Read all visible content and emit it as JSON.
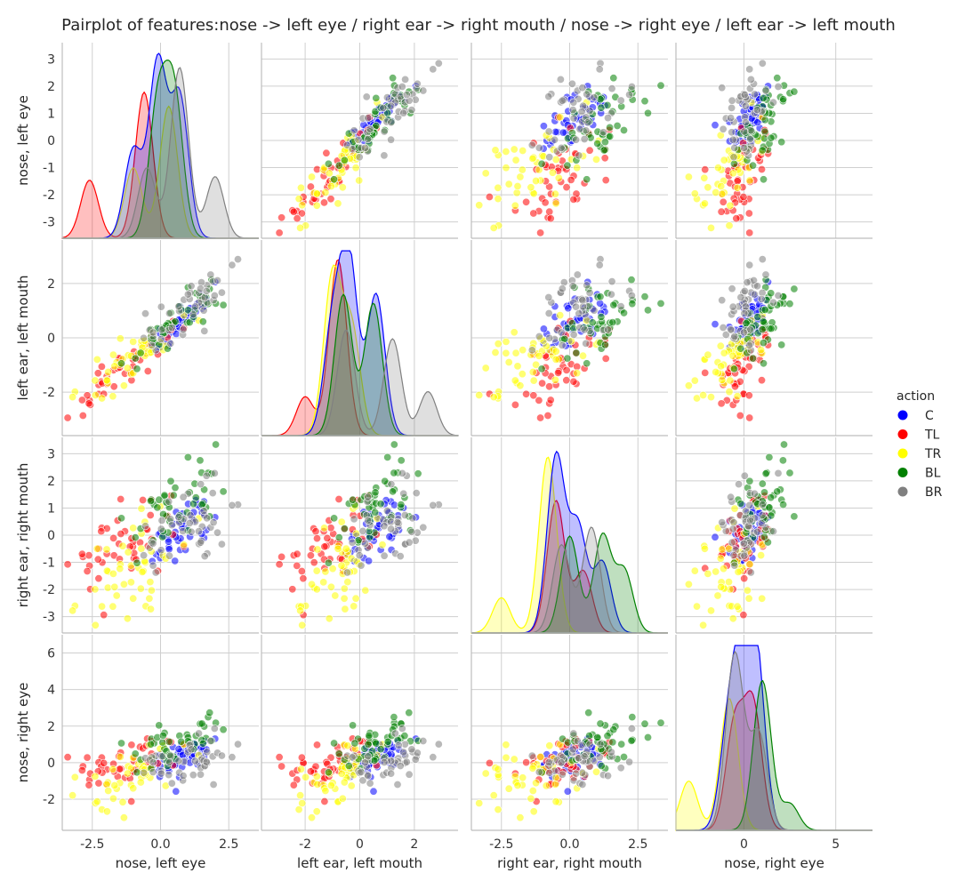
{
  "chart_data": {
    "type": "pairplot",
    "title": "Pairplot of features:nose -> left eye / right ear -> right mouth / nose -> right eye / left ear -> left mouth",
    "variables": [
      "nose, left eye",
      "left ear, left mouth",
      "right ear, right mouth",
      "nose, right eye"
    ],
    "ranges": [
      [
        -3.6,
        3.6
      ],
      [
        -3.6,
        3.6
      ],
      [
        -3.6,
        3.6
      ],
      [
        -3.7,
        7.0
      ]
    ],
    "y_ticks": [
      [
        -3,
        -2,
        -1,
        0,
        1,
        2,
        3
      ],
      [
        -2,
        0,
        2
      ],
      [
        -3,
        -2,
        -1,
        0,
        1,
        2,
        3
      ],
      [
        -2,
        0,
        2,
        4,
        6
      ]
    ],
    "x_ticks": [
      [
        -2.5,
        0.0,
        2.5
      ],
      [
        -2,
        0,
        2
      ],
      [
        -2.5,
        0.0,
        2.5
      ],
      [
        0,
        5
      ]
    ],
    "x_tick_labels": [
      [
        "-2.5",
        "0.0",
        "2.5"
      ],
      [
        "-2",
        "0",
        "2"
      ],
      [
        "-2.5",
        "0.0",
        "2.5"
      ],
      [
        "0",
        "5"
      ]
    ],
    "y_tick_labels": [
      [
        "-3",
        "-2",
        "-1",
        "0",
        "1",
        "2",
        "3"
      ],
      [
        "-2",
        "0",
        "2"
      ],
      [
        "-3",
        "-2",
        "-1",
        "0",
        "1",
        "2",
        "3"
      ],
      [
        "-2",
        "0",
        "2",
        "4",
        "6"
      ]
    ],
    "grid": true,
    "legend": {
      "title": "action",
      "placement": "right",
      "entries": [
        {
          "name": "C",
          "color": "#0000ff"
        },
        {
          "name": "TL",
          "color": "#ff0000"
        },
        {
          "name": "TR",
          "color": "#ffff00"
        },
        {
          "name": "BL",
          "color": "#008000"
        },
        {
          "name": "BR",
          "color": "#808080"
        }
      ]
    },
    "groups": [
      {
        "name": "C",
        "color": "#0000ff",
        "mean": [
          0.8,
          0.6,
          0.2,
          0.3
        ],
        "sd": [
          0.55,
          0.55,
          0.6,
          0.55
        ]
      },
      {
        "name": "TL",
        "color": "#ff0000",
        "mean": [
          -1.3,
          -1.1,
          -0.4,
          0.0
        ],
        "sd": [
          1.0,
          0.9,
          0.9,
          0.7
        ]
      },
      {
        "name": "TR",
        "color": "#ffff00",
        "mean": [
          -0.8,
          -0.6,
          -1.0,
          -0.6
        ],
        "sd": [
          0.9,
          0.8,
          1.0,
          1.0
        ]
      },
      {
        "name": "BL",
        "color": "#008000",
        "mean": [
          0.5,
          0.6,
          0.9,
          0.9
        ],
        "sd": [
          0.7,
          0.7,
          0.8,
          0.7
        ]
      },
      {
        "name": "BR",
        "color": "#808080",
        "mean": [
          1.1,
          1.2,
          0.4,
          0.2
        ],
        "sd": [
          0.9,
          0.9,
          0.9,
          0.8
        ]
      }
    ],
    "diagonal_kde": [
      {
        "variable": "nose, left eye",
        "peaks": [
          {
            "group": "C",
            "x": [
              -1.0,
              -0.1,
              0.7
            ],
            "height": [
              0.5,
              1.0,
              0.8
            ]
          },
          {
            "group": "TL",
            "x": [
              -2.6,
              -0.6
            ],
            "height": [
              0.33,
              0.83
            ]
          },
          {
            "group": "TR",
            "x": [
              -1.0,
              0.3
            ],
            "height": [
              0.4,
              0.75
            ]
          },
          {
            "group": "BL",
            "x": [
              -0.1,
              0.5
            ],
            "height": [
              0.75,
              0.8
            ]
          },
          {
            "group": "BR",
            "x": [
              -0.5,
              0.7,
              2.0
            ],
            "height": [
              0.4,
              0.97,
              0.35
            ]
          }
        ]
      },
      {
        "variable": "left ear, left mouth",
        "peaks": [
          {
            "group": "C",
            "x": [
              -1.0,
              -0.4,
              0.6
            ],
            "height": [
              0.6,
              1.0,
              0.8
            ]
          },
          {
            "group": "TL",
            "x": [
              -2.0,
              -0.8
            ],
            "height": [
              0.22,
              1.0
            ]
          },
          {
            "group": "TR",
            "x": [
              -1.0,
              -0.3
            ],
            "height": [
              0.9,
              0.6
            ]
          },
          {
            "group": "BL",
            "x": [
              -0.6,
              0.5
            ],
            "height": [
              0.8,
              0.75
            ]
          },
          {
            "group": "BR",
            "x": [
              -0.5,
              1.2,
              2.5
            ],
            "height": [
              0.6,
              0.55,
              0.25
            ]
          }
        ]
      },
      {
        "variable": "right ear, right mouth",
        "peaks": [
          {
            "group": "C",
            "x": [
              -0.5,
              0.3,
              1.2
            ],
            "height": [
              1.0,
              0.6,
              0.4
            ]
          },
          {
            "group": "TL",
            "x": [
              -0.5,
              0.5
            ],
            "height": [
              0.75,
              0.35
            ]
          },
          {
            "group": "TR",
            "x": [
              -2.5,
              -0.8
            ],
            "height": [
              0.2,
              1.0
            ]
          },
          {
            "group": "BL",
            "x": [
              0.0,
              1.2,
              2.0
            ],
            "height": [
              0.55,
              0.55,
              0.35
            ]
          },
          {
            "group": "BR",
            "x": [
              -0.3,
              0.8
            ],
            "height": [
              0.5,
              0.6
            ]
          }
        ]
      },
      {
        "variable": "nose, right eye",
        "peaks": [
          {
            "group": "C",
            "x": [
              -0.8,
              0.0,
              0.7
            ],
            "height": [
              0.6,
              0.9,
              0.85
            ]
          },
          {
            "group": "TL",
            "x": [
              -0.5,
              0.5
            ],
            "height": [
              0.6,
              0.7
            ]
          },
          {
            "group": "TR",
            "x": [
              -3.0,
              -0.8
            ],
            "height": [
              0.28,
              0.75
            ]
          },
          {
            "group": "BL",
            "x": [
              1.0,
              2.5
            ],
            "height": [
              0.85,
              0.15
            ]
          },
          {
            "group": "BR",
            "x": [
              -0.5,
              0.8
            ],
            "height": [
              1.0,
              0.55
            ]
          }
        ]
      }
    ]
  }
}
